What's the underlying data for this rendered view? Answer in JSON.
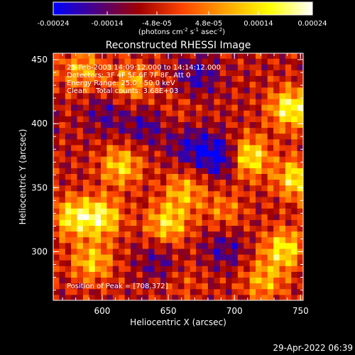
{
  "chart_data": {
    "type": "heatmap",
    "title": "Reconstructed RHESSI Image",
    "xlabel": "Heliocentric X (arcsec)",
    "ylabel": "Heliocentric Y (arcsec)",
    "xlim": [
      563,
      752
    ],
    "ylim": [
      262,
      455
    ],
    "x_ticks": [
      600,
      650,
      700,
      750
    ],
    "x_tick_labels": [
      "600",
      "650",
      "700",
      "750"
    ],
    "y_ticks": [
      300,
      350,
      400,
      450
    ],
    "y_tick_labels": [
      "300",
      "350",
      "400",
      "450"
    ],
    "colorbar": {
      "range": [
        -0.00024,
        0.00024
      ],
      "ticks": [
        -0.00024,
        -0.00014,
        -4.8e-05,
        4.8e-05,
        0.00014,
        0.00024
      ],
      "tick_labels": [
        "-0.00024",
        "-0.00014",
        "-4.8e-05",
        "4.8e-05",
        "0.00014",
        "0.00024"
      ],
      "unit_label": "(photons cm",
      "unit_exp1": "-2",
      "unit_mid": " s",
      "unit_exp2": "-1",
      "unit_end": " asec",
      "unit_exp3": "-2",
      "unit_close": ")",
      "colors": [
        "#0000ff",
        "#4b0082",
        "#a00000",
        "#ff4500",
        "#ffa500",
        "#ffff00",
        "#ffffff"
      ]
    },
    "annotations": [
      "25-Feb-2003 14:09:12.000 to 14:14:12.000",
      "Detectors: 3F 4F 5F 6F 7F 8F, Att 0",
      "Energy Range: 25.0 - 50.0 keV",
      "Clean    Total counts: 3.68E+03"
    ],
    "peak_label": "Position of Peak = [708,372]",
    "peak": [
      708,
      372
    ],
    "hotspots": [
      {
        "x": 740,
        "y": 410,
        "v": 1.0
      },
      {
        "x": 708,
        "y": 372,
        "v": 1.0
      },
      {
        "x": 745,
        "y": 355,
        "v": 0.9
      },
      {
        "x": 735,
        "y": 300,
        "v": 0.85
      },
      {
        "x": 612,
        "y": 365,
        "v": 0.75
      },
      {
        "x": 597,
        "y": 325,
        "v": 0.9
      },
      {
        "x": 575,
        "y": 325,
        "v": 0.8
      },
      {
        "x": 590,
        "y": 290,
        "v": 0.7
      },
      {
        "x": 647,
        "y": 320,
        "v": 0.8
      },
      {
        "x": 660,
        "y": 345,
        "v": 0.6
      },
      {
        "x": 620,
        "y": 430,
        "v": 0.55
      },
      {
        "x": 582,
        "y": 440,
        "v": 0.6
      },
      {
        "x": 720,
        "y": 275,
        "v": 0.6
      },
      {
        "x": 690,
        "y": 330,
        "v": 0.4
      },
      {
        "x": 655,
        "y": 410,
        "v": 0.15
      },
      {
        "x": 665,
        "y": 380,
        "v": -0.5
      },
      {
        "x": 688,
        "y": 372,
        "v": -0.8
      },
      {
        "x": 630,
        "y": 395,
        "v": -0.4
      },
      {
        "x": 670,
        "y": 435,
        "v": -0.45
      },
      {
        "x": 600,
        "y": 405,
        "v": -0.35
      },
      {
        "x": 640,
        "y": 290,
        "v": -0.35
      },
      {
        "x": 690,
        "y": 300,
        "v": -0.4
      },
      {
        "x": 660,
        "y": 275,
        "v": 0.2
      }
    ]
  },
  "footer": {
    "timestamp": "29-Apr-2022 06:39"
  }
}
